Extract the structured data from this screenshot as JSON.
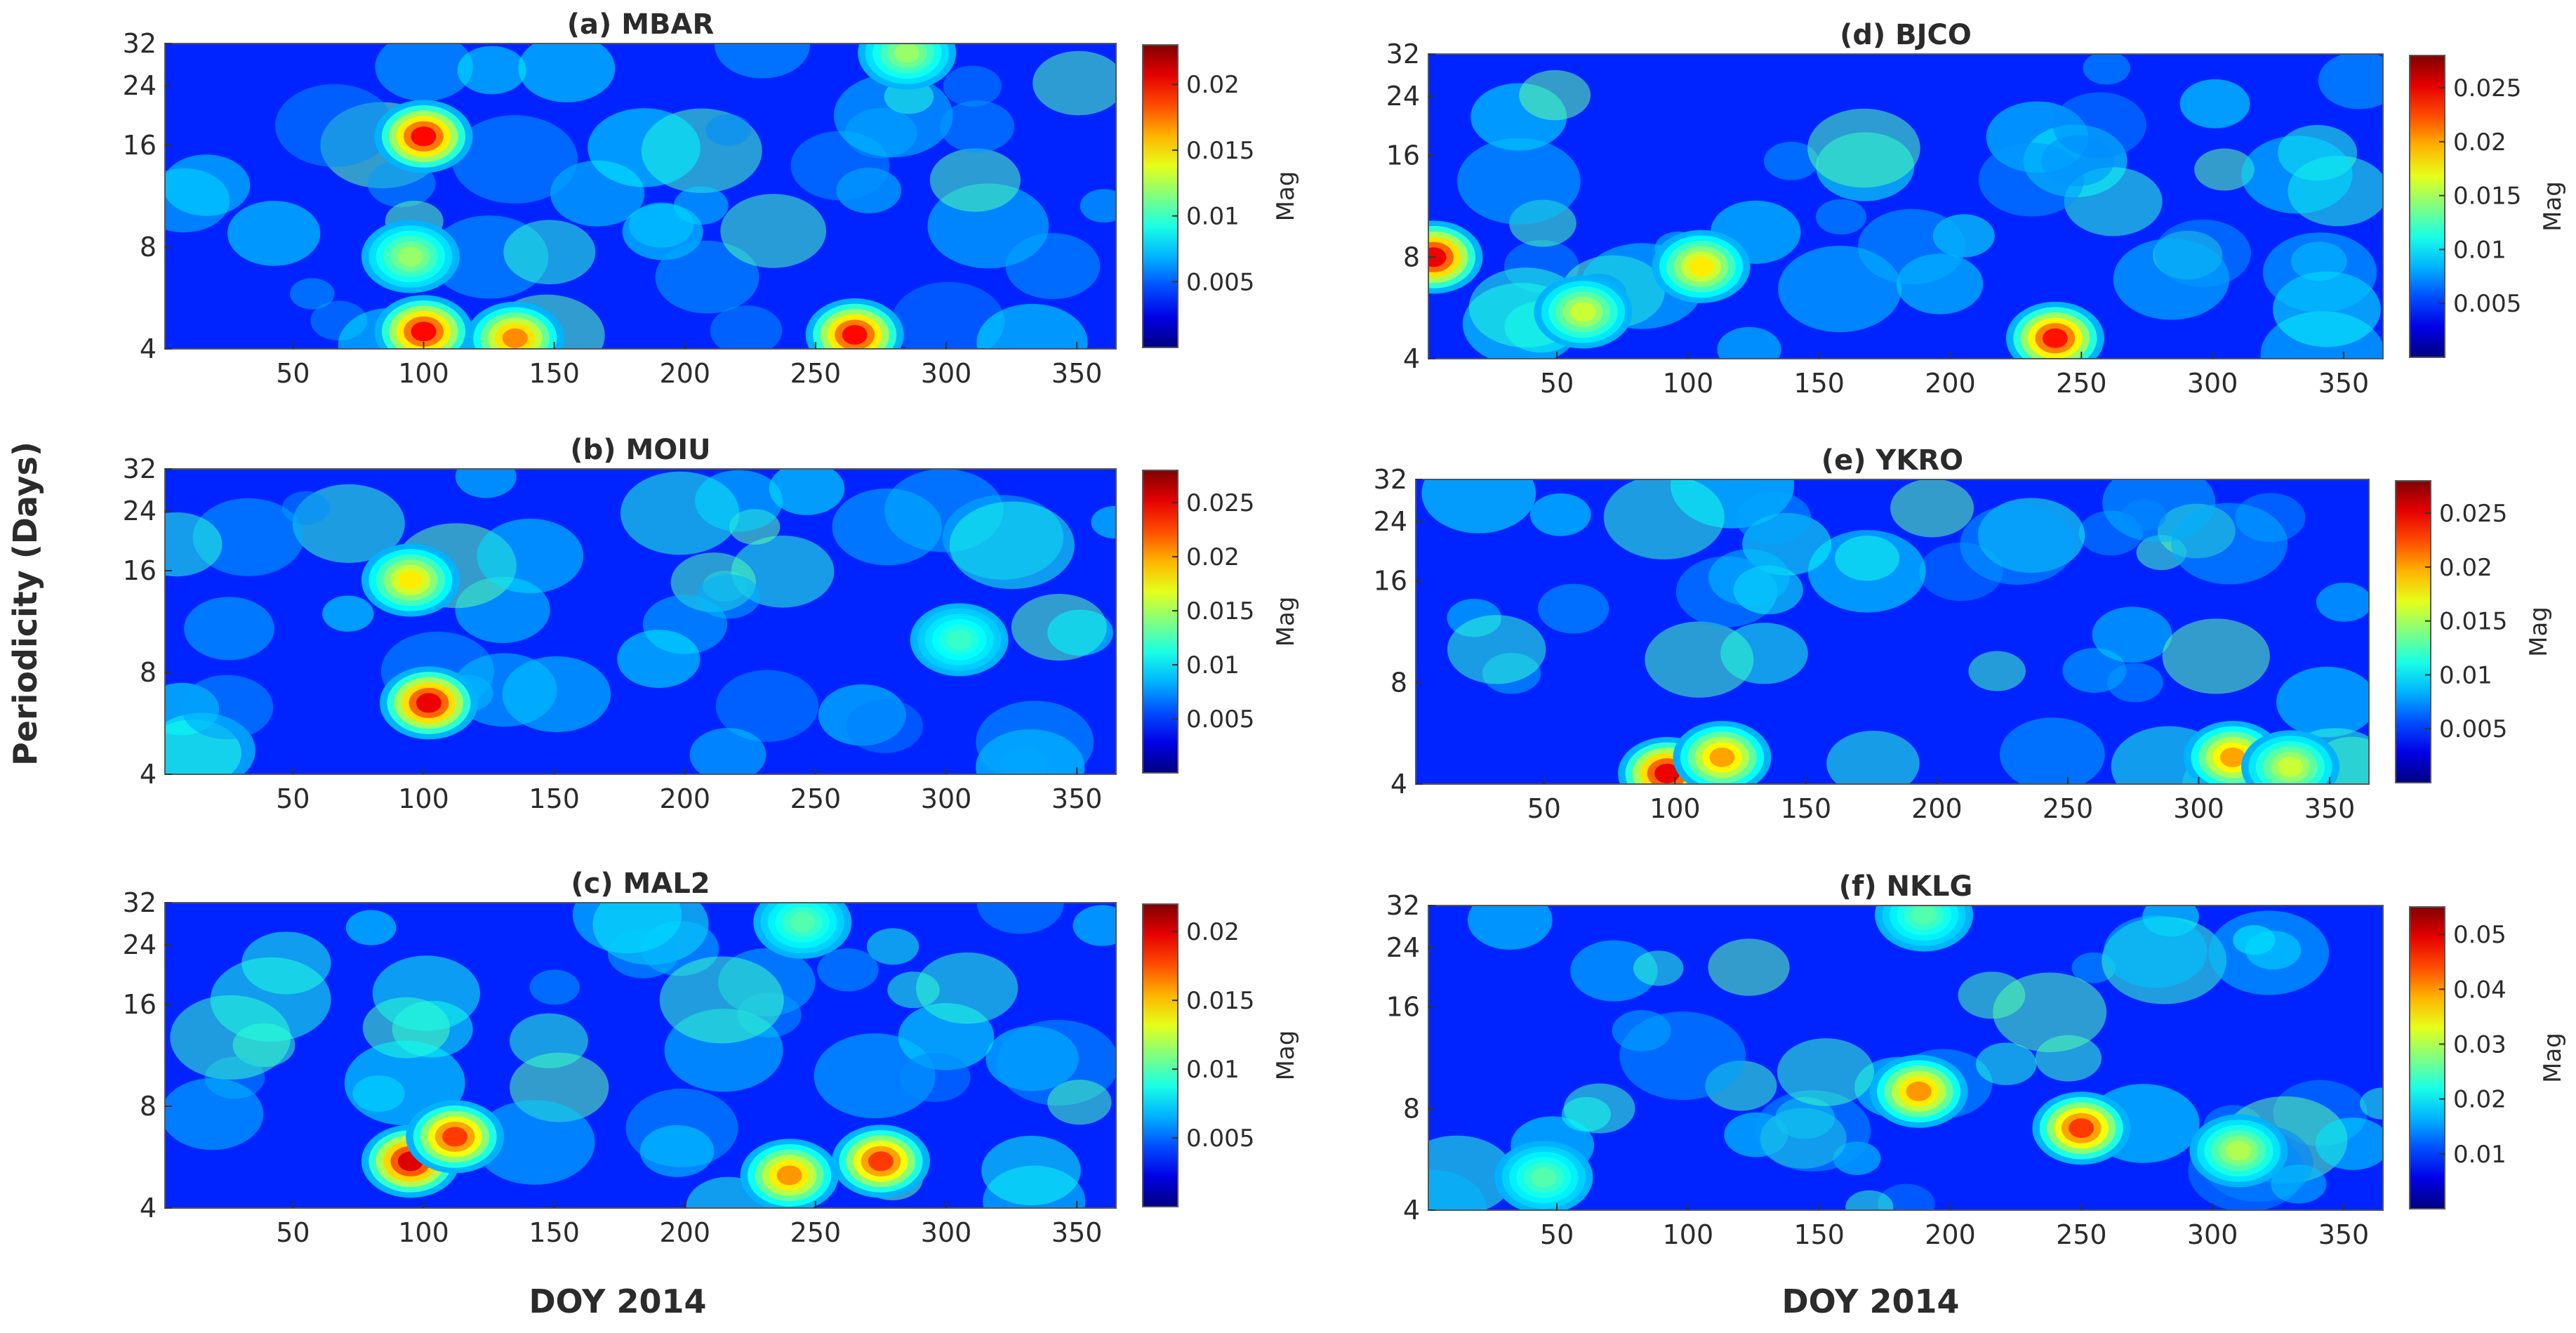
{
  "figure": {
    "ylabel": "Periodicity (Days)",
    "xlabel_left": "DOY 2014",
    "xlabel_right": "DOY 2014"
  },
  "chart_data": [
    {
      "type": "heatmap",
      "title": "(a) MBAR",
      "xlabel": "",
      "ylabel": "",
      "xlim": [
        1,
        365
      ],
      "xticks": [
        50,
        100,
        150,
        200,
        250,
        300,
        350
      ],
      "ylim": [
        4,
        32
      ],
      "yscale": "log2",
      "yticks": [
        4,
        8,
        16,
        24,
        32
      ],
      "colormap": "jet",
      "colorbar_label": "Mag",
      "clim": [
        0,
        0.023
      ],
      "colorbar_ticks": [
        0.005,
        0.01,
        0.015,
        0.02
      ],
      "colorbar_tick_labels": [
        "0.005",
        "0.01",
        "0.015",
        "0.02"
      ],
      "peaks": [
        {
          "doy": 100,
          "period": 17,
          "mag": 0.02
        },
        {
          "doy": 100,
          "period": 4.5,
          "mag": 0.02
        },
        {
          "doy": 135,
          "period": 4.3,
          "mag": 0.017
        },
        {
          "doy": 265,
          "period": 4.4,
          "mag": 0.02
        },
        {
          "doy": 285,
          "period": 30,
          "mag": 0.012
        },
        {
          "doy": 95,
          "period": 7.5,
          "mag": 0.012
        }
      ]
    },
    {
      "type": "heatmap",
      "title": "(b) MOIU",
      "xlabel": "",
      "ylabel": "",
      "xlim": [
        1,
        365
      ],
      "xticks": [
        50,
        100,
        150,
        200,
        250,
        300,
        350
      ],
      "ylim": [
        4,
        32
      ],
      "yscale": "log2",
      "yticks": [
        4,
        8,
        16,
        24,
        32
      ],
      "colormap": "jet",
      "colorbar_label": "Mag",
      "clim": [
        0,
        0.028
      ],
      "colorbar_ticks": [
        0.005,
        0.01,
        0.015,
        0.02,
        0.025
      ],
      "colorbar_tick_labels": [
        "0.005",
        "0.01",
        "0.015",
        "0.02",
        "0.025"
      ],
      "peaks": [
        {
          "doy": 102,
          "period": 6.5,
          "mag": 0.025
        },
        {
          "doy": 95,
          "period": 15,
          "mag": 0.018
        },
        {
          "doy": 305,
          "period": 10,
          "mag": 0.012
        }
      ]
    },
    {
      "type": "heatmap",
      "title": "(c) MAL2",
      "xlabel": "DOY 2014",
      "ylabel": "",
      "xlim": [
        1,
        365
      ],
      "xticks": [
        50,
        100,
        150,
        200,
        250,
        300,
        350
      ],
      "ylim": [
        4,
        32
      ],
      "yscale": "log2",
      "yticks": [
        4,
        8,
        16,
        24,
        32
      ],
      "colormap": "jet",
      "colorbar_label": "Mag",
      "clim": [
        0,
        0.022
      ],
      "colorbar_ticks": [
        0.005,
        0.01,
        0.015,
        0.02
      ],
      "colorbar_tick_labels": [
        "0.005",
        "0.01",
        "0.015",
        "0.02"
      ],
      "peaks": [
        {
          "doy": 95,
          "period": 5.5,
          "mag": 0.02
        },
        {
          "doy": 112,
          "period": 6.5,
          "mag": 0.018
        },
        {
          "doy": 240,
          "period": 5,
          "mag": 0.016
        },
        {
          "doy": 275,
          "period": 5.5,
          "mag": 0.018
        },
        {
          "doy": 245,
          "period": 28,
          "mag": 0.01
        }
      ]
    },
    {
      "type": "heatmap",
      "title": "(d) BJCO",
      "xlabel": "",
      "ylabel": "",
      "xlim": [
        1,
        365
      ],
      "xticks": [
        50,
        100,
        150,
        200,
        250,
        300,
        350
      ],
      "ylim": [
        4,
        32
      ],
      "yscale": "log2",
      "yticks": [
        4,
        8,
        16,
        24,
        32
      ],
      "colormap": "jet",
      "colorbar_label": "Mag",
      "clim": [
        0,
        0.028
      ],
      "colorbar_ticks": [
        0.005,
        0.01,
        0.015,
        0.02,
        0.025
      ],
      "colorbar_tick_labels": [
        "0.005",
        "0.01",
        "0.015",
        "0.02",
        "0.025"
      ],
      "peaks": [
        {
          "doy": 3,
          "period": 8,
          "mag": 0.025
        },
        {
          "doy": 105,
          "period": 7.5,
          "mag": 0.018
        },
        {
          "doy": 240,
          "period": 4.6,
          "mag": 0.024
        },
        {
          "doy": 60,
          "period": 5.5,
          "mag": 0.016
        }
      ]
    },
    {
      "type": "heatmap",
      "title": "(e) YKRO",
      "xlabel": "",
      "ylabel": "",
      "xlim": [
        1,
        365
      ],
      "xticks": [
        50,
        100,
        150,
        200,
        250,
        300,
        350
      ],
      "ylim": [
        4,
        32
      ],
      "yscale": "log2",
      "yticks": [
        4,
        8,
        16,
        24,
        32
      ],
      "colormap": "jet",
      "colorbar_label": "Mag",
      "clim": [
        0,
        0.028
      ],
      "colorbar_ticks": [
        0.005,
        0.01,
        0.015,
        0.02,
        0.025
      ],
      "colorbar_tick_labels": [
        "0.005",
        "0.01",
        "0.015",
        "0.02",
        "0.025"
      ],
      "peaks": [
        {
          "doy": 97,
          "period": 4.3,
          "mag": 0.025
        },
        {
          "doy": 118,
          "period": 4.8,
          "mag": 0.02
        },
        {
          "doy": 313,
          "period": 4.8,
          "mag": 0.02
        },
        {
          "doy": 335,
          "period": 4.5,
          "mag": 0.016
        }
      ]
    },
    {
      "type": "heatmap",
      "title": "(f) NKLG",
      "xlabel": "DOY 2014",
      "ylabel": "",
      "xlim": [
        1,
        365
      ],
      "xticks": [
        50,
        100,
        150,
        200,
        250,
        300,
        350
      ],
      "ylim": [
        4,
        32
      ],
      "yscale": "log2",
      "yticks": [
        4,
        8,
        16,
        24,
        32
      ],
      "colormap": "jet",
      "colorbar_label": "Mag",
      "clim": [
        0,
        0.055
      ],
      "colorbar_ticks": [
        0.01,
        0.02,
        0.03,
        0.04,
        0.05
      ],
      "colorbar_tick_labels": [
        "0.01",
        "0.02",
        "0.03",
        "0.04",
        "0.05"
      ],
      "peaks": [
        {
          "doy": 188,
          "period": 9,
          "mag": 0.04
        },
        {
          "doy": 250,
          "period": 7,
          "mag": 0.045
        },
        {
          "doy": 310,
          "period": 6,
          "mag": 0.03
        },
        {
          "doy": 190,
          "period": 30,
          "mag": 0.025
        },
        {
          "doy": 45,
          "period": 5,
          "mag": 0.025
        }
      ]
    }
  ]
}
